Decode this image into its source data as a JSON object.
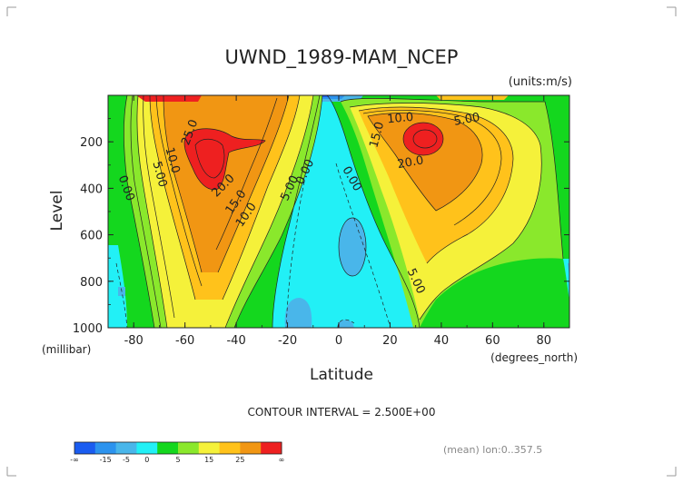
{
  "chart_data": {
    "type": "contour",
    "title": "UWND_1989-MAM_NCEP",
    "units": "(units:m/s)",
    "xlabel": "Latitude",
    "ylabel": "Level",
    "x_unit": "(degrees_north)",
    "y_unit": "(millibar)",
    "xlim": [
      -90,
      90
    ],
    "ylim": [
      1000,
      0
    ],
    "x_ticks": [
      "-80",
      "-60",
      "-40",
      "-20",
      "0",
      "20",
      "40",
      "60",
      "80"
    ],
    "y_ticks": [
      "200",
      "400",
      "600",
      "800",
      "1000"
    ],
    "contour_interval_text": "CONTOUR INTERVAL = 2.500E+00",
    "footnote": "(mean) lon:0..357.5",
    "contour_labels": [
      {
        "text": "10.0",
        "lat": 24,
        "lev": 100,
        "rot": -5
      },
      {
        "text": "5.00",
        "lat": 50,
        "lev": 105,
        "rot": -10
      },
      {
        "text": "15.0",
        "lat": 15,
        "lev": 170,
        "rot": -75
      },
      {
        "text": "20.0",
        "lat": 28,
        "lev": 290,
        "rot": -10
      },
      {
        "text": "10.0",
        "lat": -65,
        "lev": 280,
        "rot": 75
      },
      {
        "text": "5.00",
        "lat": -70,
        "lev": 340,
        "rot": 75
      },
      {
        "text": "0.00",
        "lat": -83,
        "lev": 400,
        "rot": 70
      },
      {
        "text": "25.0",
        "lat": -58,
        "lev": 160,
        "rot": -70
      },
      {
        "text": "20.0",
        "lat": -45,
        "lev": 390,
        "rot": -45
      },
      {
        "text": "15.0",
        "lat": -40,
        "lev": 460,
        "rot": -55
      },
      {
        "text": "10.0",
        "lat": -36,
        "lev": 515,
        "rot": -55
      },
      {
        "text": "5.00",
        "lat": -19,
        "lev": 400,
        "rot": -65
      },
      {
        "text": "0.00",
        "lat": -13,
        "lev": 330,
        "rot": -65
      },
      {
        "text": "0.00",
        "lat": 5,
        "lev": 360,
        "rot": 60
      },
      {
        "text": "5.00",
        "lat": 30,
        "lev": 800,
        "rot": 65
      }
    ],
    "colorbar": {
      "labels": [
        "-∞",
        "-15",
        "-5",
        "0",
        "5",
        "15",
        "25",
        "∞"
      ],
      "colors": [
        "#1a5cf0",
        "#2c93ee",
        "#49b6ea",
        "#22f0f6",
        "#14d71e",
        "#8ae82c",
        "#f5f13a",
        "#ffc21b",
        "#f19613",
        "#ee2020"
      ]
    },
    "colors": {
      "dark_blue": "#1a5cf0",
      "blue": "#2c93ee",
      "light_blue": "#49b6ea",
      "cyan": "#22f0f6",
      "green": "#14d71e",
      "yellow": "#f5f13a",
      "orange": "#f19613",
      "red": "#ee2020"
    }
  }
}
